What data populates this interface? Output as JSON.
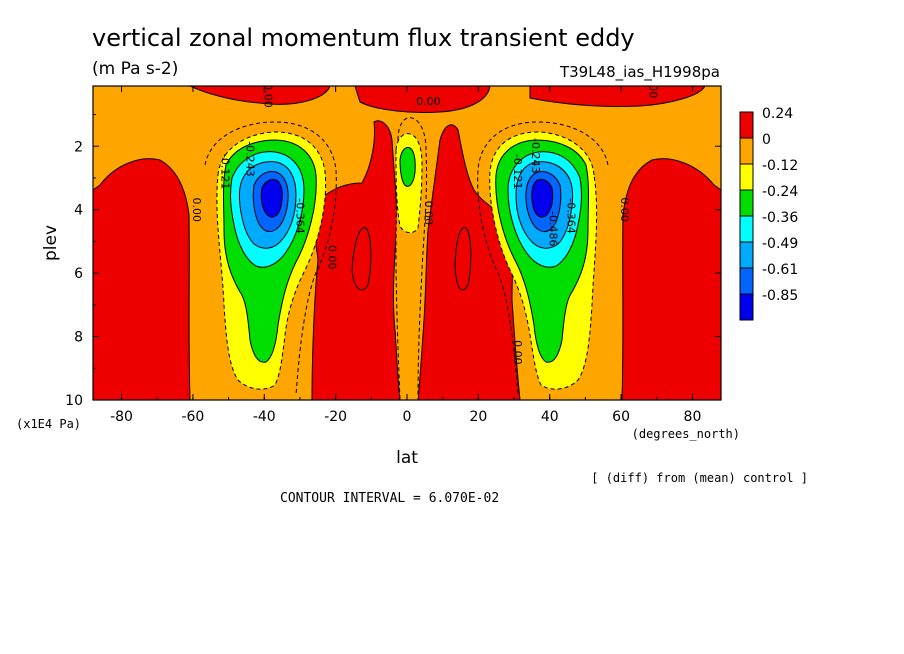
{
  "title": "vertical zonal momentum flux transient eddy",
  "units": "(m Pa s-2)",
  "run_id": "T39L48_ias_H1998pa",
  "x_unit": "(degrees_north)",
  "y_unit": "(x1E4 Pa)",
  "contour_interval": "CONTOUR INTERVAL = 6.070E-02",
  "note": "[ (diff) from (mean) control ]",
  "chart_data": {
    "type": "contour",
    "xlabel": "lat",
    "ylabel": "plev",
    "xlim": [
      -88,
      88
    ],
    "ylim": [
      10,
      0.1
    ],
    "x_ticks": [
      "-80",
      "-60",
      "-40",
      "-20",
      "0",
      "20",
      "40",
      "60",
      "80"
    ],
    "x_tick_values": [
      -80,
      -60,
      -40,
      -20,
      0,
      20,
      40,
      60,
      80
    ],
    "y_ticks": [
      "2",
      "4",
      "6",
      "8",
      "10"
    ],
    "y_tick_values": [
      2,
      4,
      6,
      8,
      10
    ],
    "legend": {
      "labels": [
        "0.24",
        "0",
        "-0.12",
        "-0.24",
        "-0.36",
        "-0.49",
        "-0.61",
        "-0.85"
      ],
      "colors": [
        "#ee0000",
        "#ffa500",
        "#ffff00",
        "#00dd00",
        "#00ffff",
        "#00aaff",
        "#0066ff",
        "#0000ee"
      ]
    },
    "contour_labels": [
      {
        "text": "0.00",
        "lat": -40,
        "plev": 0.4
      },
      {
        "text": "0.00",
        "lat": 6,
        "plev": 0.7
      },
      {
        "text": "0.00",
        "lat": 68,
        "plev": 0.1
      },
      {
        "text": "0.00",
        "lat": -60,
        "plev": 4.0
      },
      {
        "text": "0.00",
        "lat": -22,
        "plev": 5.5
      },
      {
        "text": "0.00",
        "lat": 5,
        "plev": 4.1
      },
      {
        "text": "0.00",
        "lat": 60,
        "plev": 4.0
      },
      {
        "text": "0.00",
        "lat": 30,
        "plev": 8.5
      },
      {
        "text": "-0.121",
        "lat": -52,
        "plev": 2.8
      },
      {
        "text": "-0.243",
        "lat": -45,
        "plev": 2.4
      },
      {
        "text": "-0.364",
        "lat": -31,
        "plev": 4.2
      },
      {
        "text": "-0.121",
        "lat": 30,
        "plev": 2.8
      },
      {
        "text": "-0.243",
        "lat": 35,
        "plev": 2.3
      },
      {
        "text": "-0.486",
        "lat": 40,
        "plev": 4.6
      },
      {
        "text": "-0.364",
        "lat": 45,
        "plev": 4.2
      }
    ]
  }
}
